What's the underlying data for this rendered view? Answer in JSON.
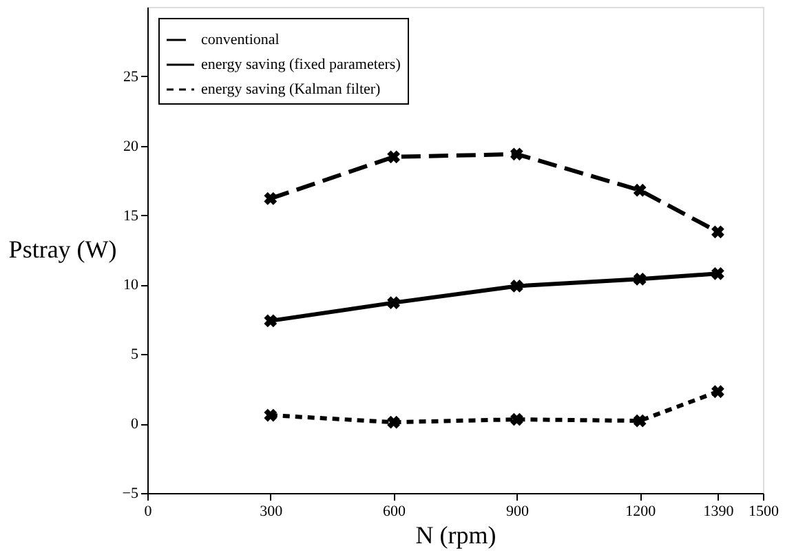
{
  "chart_data": {
    "type": "line",
    "xlabel": "N (rpm)",
    "ylabel": "Pstray (W)",
    "x": [
      300,
      600,
      900,
      1200,
      1390
    ],
    "series": [
      {
        "name": "conventional",
        "color": "#000000",
        "line_style": "dashed",
        "values": [
          16.2,
          19.2,
          19.4,
          16.8,
          13.8
        ]
      },
      {
        "name": "energy saving (fixed parameters)",
        "color": "#000000",
        "line_style": "solid",
        "values": [
          7.4,
          8.7,
          9.9,
          10.4,
          10.8
        ]
      },
      {
        "name": "energy saving (Kalman filter)",
        "color": "#000000",
        "line_style": "dotted",
        "values": [
          0.6,
          0.1,
          0.3,
          0.2,
          2.3
        ]
      }
    ],
    "xlim": [
      0,
      1500
    ],
    "xticks": [
      0,
      300,
      600,
      900,
      1200,
      1390,
      1500
    ],
    "ylim": [
      -5,
      30
    ],
    "yticks": [
      -5,
      0,
      5,
      10,
      15,
      20,
      25
    ],
    "grid": false,
    "legend": "top left",
    "marker": "cross"
  }
}
